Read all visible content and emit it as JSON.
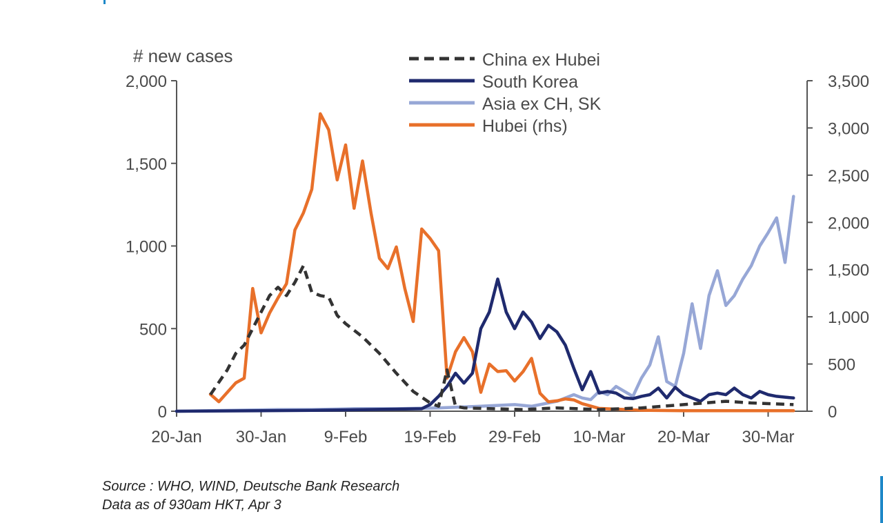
{
  "chart_data": {
    "type": "line",
    "title": "",
    "y_left_label": "# new cases",
    "y_left_range": [
      0,
      2000
    ],
    "y_left_ticks": [
      "0",
      "500",
      "1,000",
      "1,500",
      "2,000"
    ],
    "y_right_range": [
      0,
      3500
    ],
    "y_right_ticks": [
      "0",
      "500",
      "1,000",
      "1,500",
      "2,000",
      "2,500",
      "3,000",
      "3,500"
    ],
    "x_tick_labels": [
      "20-Jan",
      "30-Jan",
      "9-Feb",
      "19-Feb",
      "29-Feb",
      "10-Mar",
      "20-Mar",
      "30-Mar"
    ],
    "x_start": "20-Jan",
    "legend_position": "top-center",
    "grid": false,
    "series": [
      {
        "name": "China ex Hubei",
        "axis": "left",
        "style": "dashed",
        "color": "#333333",
        "x": [
          "24-Jan",
          "26-Jan",
          "27-Jan",
          "28-Jan",
          "29-Jan",
          "30-Jan",
          "31-Jan",
          "1-Feb",
          "2-Feb",
          "3-Feb",
          "4-Feb",
          "5-Feb",
          "6-Feb",
          "7-Feb",
          "8-Feb",
          "9-Feb",
          "11-Feb",
          "13-Feb",
          "15-Feb",
          "17-Feb",
          "19-Feb",
          "20-Feb",
          "21-Feb",
          "22-Feb",
          "23-Feb",
          "1-Mar",
          "5-Mar",
          "10-Mar",
          "15-Mar",
          "20-Mar",
          "25-Mar",
          "28-Mar",
          "2-Apr"
        ],
        "values": [
          100,
          250,
          350,
          400,
          500,
          600,
          700,
          750,
          700,
          780,
          880,
          720,
          700,
          690,
          580,
          530,
          450,
          350,
          230,
          120,
          50,
          30,
          250,
          30,
          20,
          10,
          20,
          10,
          20,
          40,
          60,
          50,
          40
        ]
      },
      {
        "name": "South Korea",
        "axis": "left",
        "style": "solid",
        "color": "#1f2a6e",
        "x": [
          "20-Jan",
          "5-Feb",
          "18-Feb",
          "19-Feb",
          "20-Feb",
          "21-Feb",
          "22-Feb",
          "23-Feb",
          "24-Feb",
          "25-Feb",
          "26-Feb",
          "27-Feb",
          "28-Feb",
          "29-Feb",
          "1-Mar",
          "2-Mar",
          "3-Mar",
          "4-Mar",
          "5-Mar",
          "6-Mar",
          "7-Mar",
          "8-Mar",
          "9-Mar",
          "10-Mar",
          "11-Mar",
          "12-Mar",
          "13-Mar",
          "14-Mar",
          "15-Mar",
          "16-Mar",
          "17-Mar",
          "18-Mar",
          "19-Mar",
          "20-Mar",
          "21-Mar",
          "22-Mar",
          "23-Mar",
          "24-Mar",
          "25-Mar",
          "26-Mar",
          "27-Mar",
          "28-Mar",
          "29-Mar",
          "30-Mar",
          "31-Mar",
          "1-Apr",
          "2-Apr"
        ],
        "values": [
          0,
          5,
          15,
          40,
          90,
          150,
          230,
          170,
          230,
          500,
          600,
          800,
          600,
          500,
          600,
          540,
          440,
          520,
          480,
          400,
          260,
          130,
          240,
          110,
          120,
          110,
          80,
          76,
          90,
          100,
          140,
          80,
          145,
          100,
          80,
          60,
          100,
          110,
          100,
          140,
          100,
          80,
          120,
          100,
          90,
          85,
          80
        ]
      },
      {
        "name": "Asia ex CH, SK",
        "axis": "left",
        "style": "solid",
        "color": "#97a7d6",
        "x": [
          "20-Jan",
          "1-Feb",
          "5-Feb",
          "10-Feb",
          "15-Feb",
          "20-Feb",
          "25-Feb",
          "29-Feb",
          "2-Mar",
          "5-Mar",
          "7-Mar",
          "8-Mar",
          "9-Mar",
          "10-Mar",
          "11-Mar",
          "12-Mar",
          "13-Mar",
          "14-Mar",
          "15-Mar",
          "16-Mar",
          "17-Mar",
          "18-Mar",
          "19-Mar",
          "20-Mar",
          "21-Mar",
          "22-Mar",
          "23-Mar",
          "24-Mar",
          "25-Mar",
          "26-Mar",
          "27-Mar",
          "28-Mar",
          "29-Mar",
          "30-Mar",
          "31-Mar",
          "1-Apr",
          "2-Apr"
        ],
        "values": [
          0,
          10,
          10,
          15,
          15,
          20,
          30,
          40,
          30,
          60,
          100,
          80,
          70,
          120,
          100,
          150,
          120,
          90,
          200,
          280,
          450,
          180,
          150,
          350,
          650,
          380,
          700,
          850,
          640,
          700,
          800,
          880,
          1000,
          1080,
          1170,
          900,
          1300
        ]
      },
      {
        "name": "Hubei (rhs)",
        "axis": "right",
        "style": "solid",
        "color": "#e8702a",
        "x": [
          "24-Jan",
          "25-Jan",
          "27-Jan",
          "28-Jan",
          "29-Jan",
          "30-Jan",
          "31-Jan",
          "1-Feb",
          "2-Feb",
          "3-Feb",
          "4-Feb",
          "5-Feb",
          "6-Feb",
          "7-Feb",
          "8-Feb",
          "9-Feb",
          "10-Feb",
          "11-Feb",
          "12-Feb",
          "13-Feb",
          "14-Feb",
          "15-Feb",
          "16-Feb",
          "17-Feb",
          "18-Feb",
          "19-Feb",
          "20-Feb",
          "21-Feb",
          "22-Feb",
          "23-Feb",
          "24-Feb",
          "25-Feb",
          "26-Feb",
          "27-Feb",
          "28-Feb",
          "29-Feb",
          "1-Mar",
          "2-Mar",
          "3-Mar",
          "4-Mar",
          "5-Mar",
          "6-Mar",
          "7-Mar",
          "8-Mar",
          "10-Mar",
          "15-Mar",
          "20-Mar",
          "25-Mar",
          "2-Apr"
        ],
        "values": [
          180,
          100,
          300,
          350,
          1300,
          830,
          1040,
          1200,
          1350,
          1920,
          2100,
          2350,
          3150,
          2980,
          2450,
          2820,
          2150,
          2650,
          2100,
          1620,
          1510,
          1740,
          1300,
          950,
          1930,
          1830,
          1700,
          350,
          630,
          780,
          630,
          200,
          500,
          420,
          430,
          320,
          420,
          560,
          190,
          100,
          110,
          130,
          120,
          80,
          30,
          10,
          5,
          5,
          5
        ]
      }
    ]
  },
  "source_lines": [
    "Source : WHO, WIND, Deutsche Bank Research",
    "Data as of 930am HKT, Apr 3"
  ]
}
